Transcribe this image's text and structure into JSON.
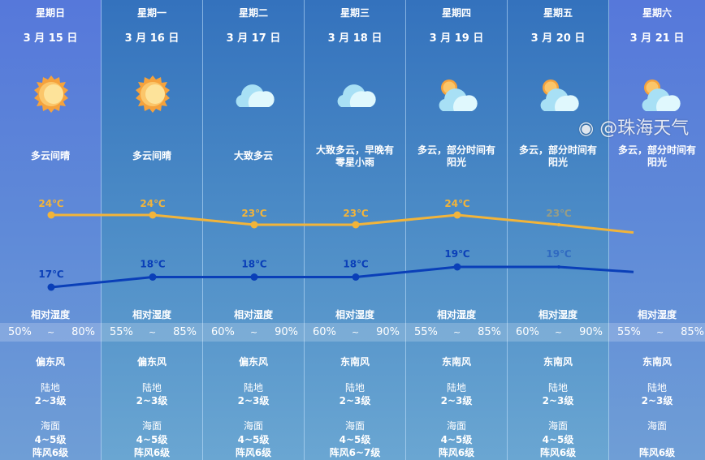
{
  "days": [
    {
      "weekday": "星期日",
      "date": "3 月 15 日",
      "icon": "sun-icon",
      "desc": [
        "多云间晴"
      ],
      "high": 24,
      "low": 17,
      "high_label": "24℃",
      "low_label": "17℃",
      "hum_lo": "50%",
      "hum_hi": "80%",
      "wind": "偏东风",
      "land": "2~3级",
      "sea": "4~5级",
      "gust": "阵风6级"
    },
    {
      "weekday": "星期一",
      "date": "3 月 16 日",
      "icon": "sun-icon",
      "desc": [
        "多云间晴"
      ],
      "high": 24,
      "low": 18,
      "high_label": "24℃",
      "low_label": "18℃",
      "hum_lo": "55%",
      "hum_hi": "85%",
      "wind": "偏东风",
      "land": "2~3级",
      "sea": "4~5级",
      "gust": "阵风6级"
    },
    {
      "weekday": "星期二",
      "date": "3 月 17 日",
      "icon": "cloud-icon",
      "desc": [
        "大致多云"
      ],
      "high": 23,
      "low": 18,
      "high_label": "23℃",
      "low_label": "18℃",
      "hum_lo": "60%",
      "hum_hi": "90%",
      "wind": "偏东风",
      "land": "2~3级",
      "sea": "4~5级",
      "gust": "阵风6级"
    },
    {
      "weekday": "星期三",
      "date": "3 月 18 日",
      "icon": "cloud-icon",
      "desc": [
        "大致多云，早晚有",
        "零星小雨"
      ],
      "high": 23,
      "low": 18,
      "high_label": "23℃",
      "low_label": "18℃",
      "hum_lo": "60%",
      "hum_hi": "90%",
      "wind": "东南风",
      "land": "2~3级",
      "sea": "4~5级",
      "gust": "阵风6~7级"
    },
    {
      "weekday": "星期四",
      "date": "3 月 19 日",
      "icon": "sun-cloud-icon",
      "desc": [
        "多云，部分时间有",
        "阳光"
      ],
      "high": 24,
      "low": 19,
      "high_label": "24℃",
      "low_label": "19℃",
      "hum_lo": "55%",
      "hum_hi": "85%",
      "wind": "东南风",
      "land": "2~3级",
      "sea": "4~5级",
      "gust": "阵风6级"
    },
    {
      "weekday": "星期五",
      "date": "3 月 20 日",
      "icon": "sun-cloud-icon",
      "desc": [
        "多云，部分时间有",
        "阳光"
      ],
      "high": 23,
      "low": 19,
      "high_label": "23℃",
      "low_label": "19℃",
      "hum_lo": "60%",
      "hum_hi": "90%",
      "wind": "东南风",
      "land": "2~3级",
      "sea": "4~5级",
      "gust": "阵风6级"
    },
    {
      "weekday": "星期六",
      "date": "3 月 21 日",
      "icon": "sun-cloud-icon",
      "desc": [
        "多云，部分时间有",
        "阳光"
      ],
      "hum_lo": "55%",
      "hum_hi": "85%",
      "wind": "东南风",
      "land": "2~3级",
      "gust": "阵风6级"
    }
  ],
  "labels": {
    "humidity": "相对湿度",
    "tilde": "~",
    "land": "陆地",
    "sea": "海面"
  },
  "colors": {
    "high_line": "#f2b43a",
    "low_line": "#0a3fb8"
  },
  "watermark": "@珠海天气"
}
